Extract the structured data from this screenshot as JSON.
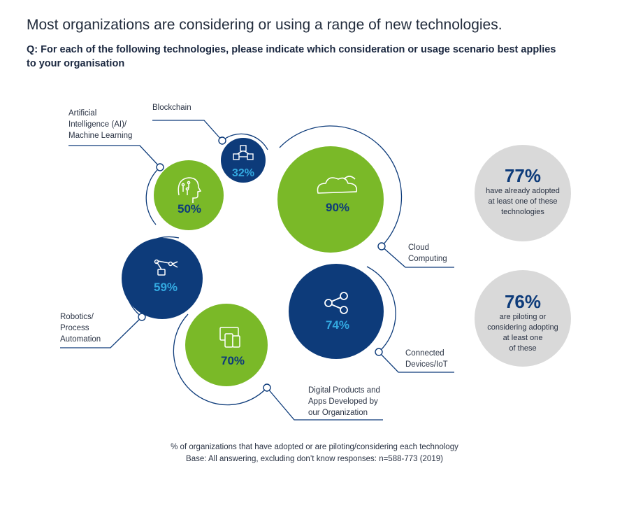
{
  "title": "Most organizations are considering or using a range of new technologies.",
  "question": "Q: For each of the following technologies, please indicate which consideration or usage scenario best applies to your organisation",
  "colors": {
    "green": "#7ab928",
    "navy": "#0d3b7a",
    "navy_text_pct": "#33a8e0",
    "gray": "#d9d9d9",
    "line": "#0d3b7a",
    "stat_text": "#0d3b7a"
  },
  "chart_data": {
    "type": "bubble",
    "title": "Most organizations are considering or using a range of new technologies.",
    "value_unit": "% of organizations that have adopted or are piloting/considering each technology",
    "series": [
      {
        "name": "Cloud Computing",
        "value": 90,
        "label": "90%",
        "icon": "cloud-icon",
        "color": "green"
      },
      {
        "name": "Connected Devices/IoT",
        "value": 74,
        "label": "74%",
        "icon": "share-icon",
        "color": "navy"
      },
      {
        "name": "Digital Products and Apps Developed by our Organization",
        "value": 70,
        "label": "70%",
        "icon": "devices-icon",
        "color": "green"
      },
      {
        "name": "Robotics/Process Automation",
        "value": 59,
        "label": "59%",
        "icon": "robot-arm-icon",
        "color": "navy"
      },
      {
        "name": "Artificial Intelligence (AI)/Machine Learning",
        "value": 50,
        "label": "50%",
        "icon": "ai-head-icon",
        "color": "green"
      },
      {
        "name": "Blockchain",
        "value": 32,
        "label": "32%",
        "icon": "blockchain-icon",
        "color": "navy"
      }
    ]
  },
  "labels": {
    "cloud": "Cloud\nComputing",
    "iot": "Connected\nDevices/IoT",
    "digital": "Digital Products and\nApps Developed by\nour Organization",
    "robotics": "Robotics/\nProcess\nAutomation",
    "ai": "Artificial\nIntelligence (AI)/\nMachine Learning",
    "blockchain": "Blockchain"
  },
  "stats": [
    {
      "value": "77%",
      "text": "have already adopted\nat least one of these\ntechnologies"
    },
    {
      "value": "76%",
      "text": "are piloting or\nconsidering adopting\nat least one\nof these"
    }
  ],
  "footnote": {
    "line1": "% of organizations that have adopted or are piloting/considering each technology",
    "line2": "Base: All answering, excluding don’t know responses: n=588-773 (2019)"
  }
}
